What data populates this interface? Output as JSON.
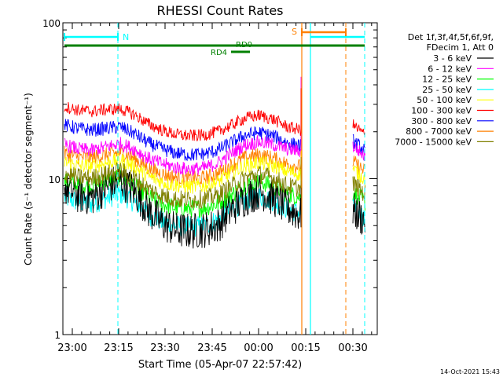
{
  "chart_data": {
    "type": "line",
    "title": "RHESSI Count Rates",
    "ylabel": "Count Rate (s⁻¹ detector segment⁻¹)",
    "xlabel": "Start Time (05-Apr-07 22:57:42)",
    "y_scale": "log",
    "ylim": [
      1,
      100
    ],
    "y_ticks": [
      {
        "value": 1,
        "label": "1"
      },
      {
        "value": 10,
        "label": "10"
      },
      {
        "value": 100,
        "label": "100"
      }
    ],
    "x_ticks": [
      "23:00",
      "23:15",
      "23:30",
      "23:45",
      "00:00",
      "00:15",
      "00:30"
    ],
    "legend": {
      "header": [
        "Det 1f,3f,4f,5f,6f,9f,",
        "FDecim 1, Att 0"
      ],
      "placement": "right"
    },
    "series": [
      {
        "name": "3 - 6 keV",
        "color": "#000000",
        "values": [
          8.8,
          7.8,
          7.6,
          8.8,
          9.8,
          8.3,
          6.3,
          5.2,
          4.7,
          4.6,
          4.7,
          5.0,
          6.3,
          7.5,
          8.3,
          7.5,
          6.5,
          5.8
        ]
      },
      {
        "name": "6 - 12 keV",
        "color": "#ff00ff",
        "values": [
          16.5,
          15.5,
          15.2,
          16.0,
          16.8,
          15.5,
          13.5,
          12.5,
          11.8,
          11.5,
          11.7,
          12.5,
          14.5,
          16.5,
          17.2,
          16.5,
          15.5,
          15.0
        ]
      },
      {
        "name": "12 - 25 keV",
        "color": "#00ff00",
        "values": [
          9.6,
          9.1,
          9.0,
          9.7,
          10.3,
          9.1,
          7.6,
          6.9,
          6.5,
          6.4,
          6.5,
          6.9,
          7.9,
          9.0,
          9.6,
          9.0,
          8.0,
          7.6
        ]
      },
      {
        "name": "25 - 50 keV",
        "color": "#00ffff",
        "values": [
          7.6,
          7.1,
          6.9,
          7.5,
          8.0,
          7.1,
          5.9,
          5.3,
          5.0,
          4.9,
          5.0,
          5.4,
          6.3,
          7.2,
          7.7,
          7.2,
          6.4,
          6.0
        ]
      },
      {
        "name": "50 - 100 keV",
        "color": "#ffff00",
        "values": [
          12.8,
          12.1,
          12.0,
          12.6,
          13.2,
          12.0,
          10.4,
          9.5,
          9.1,
          8.9,
          9.0,
          9.5,
          10.9,
          12.1,
          12.7,
          12.1,
          11.1,
          10.7
        ]
      },
      {
        "name": "100 - 300 keV",
        "color": "#ff0000",
        "values": [
          29.0,
          27.5,
          27.0,
          27.8,
          28.0,
          25.8,
          22.5,
          20.5,
          19.2,
          18.8,
          19.0,
          20.0,
          22.0,
          24.5,
          25.5,
          24.0,
          21.5,
          20.5
        ]
      },
      {
        "name": "300 - 800 keV",
        "color": "#0000ff",
        "values": [
          22.0,
          21.0,
          20.5,
          21.0,
          21.5,
          19.5,
          17.0,
          15.5,
          14.6,
          14.2,
          14.4,
          15.2,
          17.0,
          19.0,
          19.8,
          18.8,
          17.0,
          16.2
        ]
      },
      {
        "name": "800 - 7000 keV",
        "color": "#ff8000",
        "values": [
          14.5,
          13.8,
          13.6,
          14.2,
          14.8,
          13.5,
          11.7,
          10.7,
          10.2,
          10.0,
          10.1,
          10.7,
          12.2,
          13.6,
          14.2,
          13.5,
          12.4,
          11.9
        ]
      },
      {
        "name": "7000 - 15000 keV",
        "color": "#808000",
        "values": [
          10.8,
          10.2,
          10.1,
          10.7,
          11.3,
          10.1,
          8.6,
          7.8,
          7.4,
          7.3,
          7.4,
          7.8,
          8.9,
          10.1,
          10.7,
          10.1,
          9.0,
          8.6
        ]
      }
    ],
    "annotations": {
      "flags": [
        "N",
        "RD0",
        "RD4",
        "S"
      ],
      "colors": {
        "N": "#00ffff",
        "RD0": "#008000",
        "RD4": "#008000",
        "S": "#ff8000"
      }
    },
    "grid": false
  },
  "timestamp": "14-Oct-2021 15:43"
}
